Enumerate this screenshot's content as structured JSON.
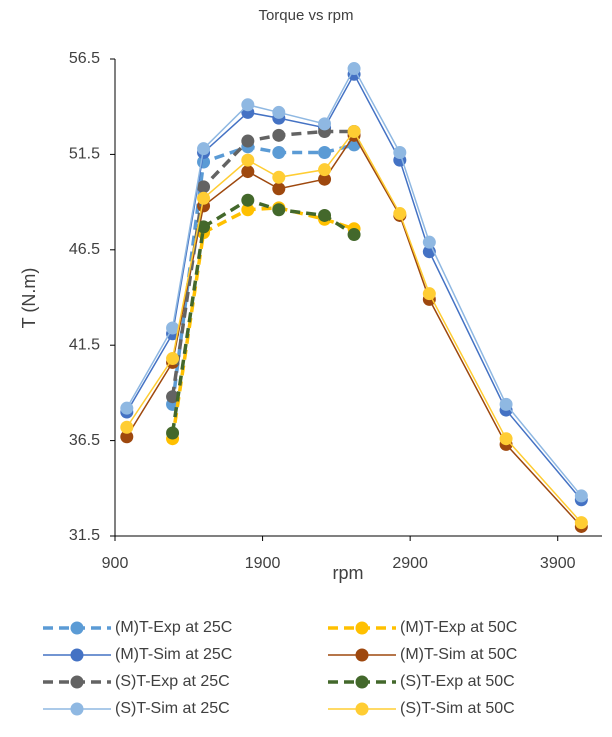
{
  "chart_data": {
    "type": "line",
    "title": "Torque vs rpm",
    "x_label": "rpm",
    "y_label": "T (N.m)",
    "x": [
      980,
      1290,
      1500,
      1800,
      2010,
      2320,
      2520,
      2830,
      3030,
      3550,
      4060
    ],
    "xlim": [
      900,
      4200
    ],
    "xticks": [
      900,
      1900,
      2900,
      3900
    ],
    "ylim": [
      31.5,
      56.5
    ],
    "yticks": [
      31.5,
      36.5,
      41.5,
      46.5,
      51.5,
      56.5
    ],
    "grid": false,
    "legend": "bottom",
    "series": [
      {
        "name": "(M)T-Exp at 25C",
        "color": "#5b9bd5",
        "style": "dashed",
        "values": [
          null,
          38.4,
          51.1,
          51.9,
          51.6,
          51.6,
          52.0,
          null,
          null,
          null,
          null
        ]
      },
      {
        "name": "(M)T-Exp at 50C",
        "color": "#ffc000",
        "style": "dashed",
        "values": [
          null,
          36.6,
          47.4,
          48.6,
          48.7,
          48.1,
          47.6,
          null,
          null,
          null,
          null
        ]
      },
      {
        "name": "(M)T-Sim at 25C",
        "color": "#4472c4",
        "style": "solid",
        "values": [
          38.0,
          42.1,
          51.6,
          53.7,
          53.4,
          52.9,
          55.7,
          51.2,
          46.4,
          38.1,
          33.4
        ]
      },
      {
        "name": "(M)T-Sim at 50C",
        "color": "#9e480e",
        "style": "solid",
        "values": [
          36.7,
          40.6,
          48.8,
          50.6,
          49.7,
          50.2,
          52.5,
          48.3,
          43.9,
          36.3,
          32.0
        ]
      },
      {
        "name": "(S)T-Exp at 25C",
        "color": "#636363",
        "style": "dashed",
        "values": [
          null,
          38.8,
          49.8,
          52.2,
          52.5,
          52.7,
          52.7,
          null,
          null,
          null,
          null
        ]
      },
      {
        "name": "(S)T-Exp at 50C",
        "color": "#43682b",
        "style": "dashed",
        "values": [
          null,
          36.9,
          47.7,
          49.1,
          48.6,
          48.3,
          47.3,
          null,
          null,
          null,
          null
        ]
      },
      {
        "name": "(S)T-Sim at 25C",
        "color": "#8fb8e2",
        "style": "solid",
        "values": [
          38.2,
          42.4,
          51.8,
          54.1,
          53.7,
          53.1,
          56.0,
          51.6,
          46.9,
          38.4,
          33.6
        ]
      },
      {
        "name": "(S)T-Sim at 50C",
        "color": "#ffcd33",
        "style": "solid",
        "values": [
          37.2,
          40.8,
          49.2,
          51.2,
          50.3,
          50.7,
          52.7,
          48.4,
          44.2,
          36.6,
          32.2
        ]
      }
    ]
  }
}
